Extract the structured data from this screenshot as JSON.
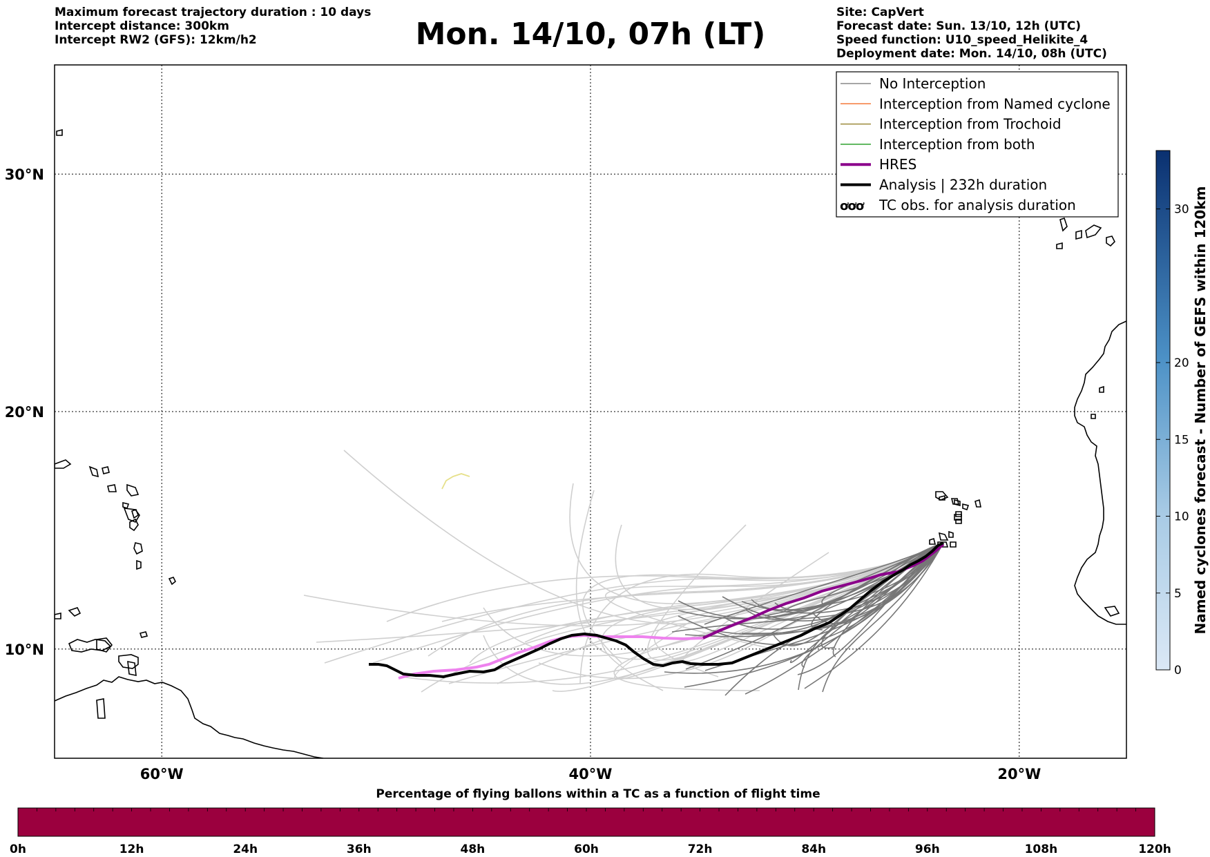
{
  "header": {
    "left_lines": [
      "Maximum forecast trajectory duration : 10 days",
      "Intercept distance: 300km",
      "Intercept RW2 (GFS):  12km/h2"
    ],
    "title": "Mon. 14/10, 07h (LT)",
    "right_lines": [
      "Site: CapVert",
      "Forecast date: Sun. 13/10, 12h (UTC)",
      "Speed function: U10_speed_Helikite_4",
      "Deployment date: Mon. 14/10, 08h (UTC)"
    ]
  },
  "map": {
    "lat_labels": [
      "30°N",
      "20°N",
      "10°N"
    ],
    "lon_labels": [
      "60°W",
      "40°W",
      "20°W"
    ],
    "lat_values": [
      30,
      20,
      10
    ],
    "lon_values": [
      -60,
      -40,
      -20
    ],
    "extent": {
      "lon_min": -65,
      "lon_max": -15,
      "lat_min": 5.4,
      "lat_max": 34.6
    }
  },
  "legend": {
    "items": [
      {
        "label": "No Interception",
        "color": "#888888",
        "style": "thin"
      },
      {
        "label": "Interception from Named cyclone",
        "color": "#f5793a",
        "style": "thin"
      },
      {
        "label": "Interception from Trochoid",
        "color": "#9b8a3a",
        "style": "thin"
      },
      {
        "label": "Interception from both",
        "color": "#2ca02c",
        "style": "thin"
      },
      {
        "label": "HRES",
        "color": "#8b008b",
        "style": "thick"
      },
      {
        "label": "Analysis | 232h duration",
        "color": "#000000",
        "style": "thick"
      },
      {
        "label": "TC obs. for analysis duration",
        "color": "#000000",
        "style": "symbol",
        "symbol": "ઝઝઝ"
      }
    ]
  },
  "colorbar_right": {
    "label": "Named cyclones forecast - Number of GEFS within 120km",
    "ticks": [
      "0",
      "5",
      "10",
      "15",
      "20",
      "30"
    ],
    "tick_values": [
      0,
      5,
      10,
      15,
      20,
      30
    ]
  },
  "colorbar_bottom": {
    "title": "Percentage of flying ballons within a TC as a function of flight time",
    "color": "#9b003e",
    "ticks": [
      "0h",
      "12h",
      "24h",
      "36h",
      "48h",
      "60h",
      "72h",
      "84h",
      "96h",
      "108h",
      "120h"
    ]
  },
  "colors": {
    "no_interception": "#888888",
    "light_members": "#cfcfcf",
    "hres_start": "#ee82ee",
    "hres_end": "#8b008b",
    "analysis": "#000000",
    "yellow_member": "#e6e08a"
  }
}
